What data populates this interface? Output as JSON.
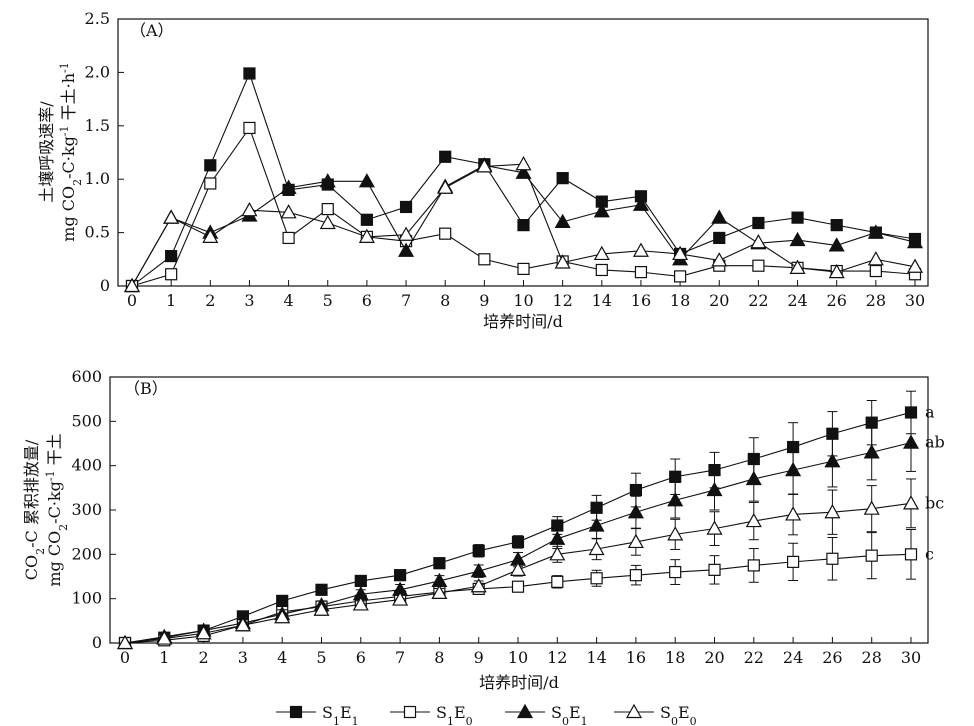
{
  "legend": [
    {
      "key": "S1E1",
      "base": "S",
      "sub1": "1",
      "mid": "E",
      "sub2": "1",
      "marker": "square",
      "fill": "#111111"
    },
    {
      "key": "S1E0",
      "base": "S",
      "sub1": "1",
      "mid": "E",
      "sub2": "0",
      "marker": "square",
      "fill": "#ffffff"
    },
    {
      "key": "S0E1",
      "base": "S",
      "sub1": "0",
      "mid": "E",
      "sub2": "1",
      "marker": "triangle",
      "fill": "#111111"
    },
    {
      "key": "S0E0",
      "base": "S",
      "sub1": "0",
      "mid": "E",
      "sub2": "0",
      "marker": "triangle",
      "fill": "#ffffff"
    }
  ],
  "chart_data": [
    {
      "type": "line",
      "panel_label": "（A）",
      "xlabel": "培养时间/d",
      "ylabel_line1": "土壤呼吸速率/",
      "ylabel_line2": {
        "a": "mg CO",
        "b": "2",
        "c": "-C·kg",
        "d": "-1",
        "e": " 干土·h",
        "f": "-1"
      },
      "categories": [
        "0",
        "1",
        "2",
        "3",
        "4",
        "5",
        "6",
        "7",
        "8",
        "9",
        "10",
        "12",
        "14",
        "16",
        "18",
        "20",
        "22",
        "24",
        "26",
        "28",
        "30"
      ],
      "ylim": [
        0,
        2.5
      ],
      "yticks": [
        "0",
        "0.5",
        "1.0",
        "1.5",
        "2.0",
        "2.5"
      ],
      "series": [
        {
          "key": "S1E1",
          "values": [
            0,
            0.28,
            1.13,
            1.99,
            0.9,
            0.95,
            0.62,
            0.74,
            1.21,
            1.14,
            0.57,
            1.01,
            0.79,
            0.84,
            0.3,
            0.45,
            0.59,
            0.64,
            0.57,
            0.5,
            0.44
          ]
        },
        {
          "key": "S1E0",
          "values": [
            0,
            0.11,
            0.96,
            1.48,
            0.45,
            0.72,
            0.46,
            0.42,
            0.49,
            0.25,
            0.16,
            0.23,
            0.15,
            0.13,
            0.09,
            0.19,
            0.19,
            0.17,
            0.14,
            0.14,
            0.11
          ]
        },
        {
          "key": "S0E1",
          "values": [
            0,
            0.64,
            0.5,
            0.66,
            0.92,
            0.98,
            0.98,
            0.33,
            0.93,
            1.13,
            1.06,
            0.6,
            0.7,
            0.76,
            0.25,
            0.64,
            0.4,
            0.43,
            0.38,
            0.5,
            0.41
          ]
        },
        {
          "key": "S0E0",
          "values": [
            0,
            0.64,
            0.46,
            0.71,
            0.69,
            0.59,
            0.46,
            0.48,
            0.92,
            1.12,
            1.14,
            0.22,
            0.3,
            0.33,
            0.3,
            0.24,
            0.41,
            0.17,
            0.13,
            0.25,
            0.18
          ]
        }
      ]
    },
    {
      "type": "line",
      "panel_label": "（B）",
      "xlabel": "培养时间/d",
      "ylabel_line1": {
        "a": "CO",
        "b": "2",
        "c": "-C 累积排放量/"
      },
      "ylabel_line2": {
        "a": "mg CO",
        "b": "2",
        "c": "-C·kg",
        "d": "-1",
        "e": " 干土"
      },
      "categories": [
        "0",
        "1",
        "2",
        "3",
        "4",
        "5",
        "6",
        "7",
        "8",
        "9",
        "10",
        "12",
        "14",
        "16",
        "18",
        "20",
        "22",
        "24",
        "26",
        "28",
        "30"
      ],
      "ylim": [
        0,
        600
      ],
      "yticks": [
        "0",
        "100",
        "200",
        "300",
        "400",
        "500",
        "600"
      ],
      "series": [
        {
          "key": "S1E1",
          "significance": "a",
          "values": [
            0,
            12,
            28,
            60,
            95,
            120,
            140,
            153,
            180,
            208,
            228,
            265,
            305,
            345,
            375,
            390,
            415,
            442,
            472,
            497,
            520
          ],
          "errors": [
            0,
            4,
            6,
            8,
            10,
            10,
            10,
            12,
            12,
            14,
            14,
            20,
            28,
            38,
            40,
            40,
            48,
            55,
            50,
            50,
            48
          ]
        },
        {
          "key": "S1E0",
          "significance": "c",
          "values": [
            0,
            6,
            16,
            40,
            70,
            82,
            95,
            105,
            115,
            122,
            127,
            138,
            146,
            153,
            160,
            165,
            175,
            183,
            190,
            197,
            200
          ],
          "errors": [
            0,
            3,
            5,
            6,
            8,
            8,
            8,
            10,
            10,
            10,
            10,
            14,
            18,
            22,
            28,
            32,
            38,
            42,
            48,
            52,
            56
          ]
        },
        {
          "key": "S0E1",
          "significance": "ab",
          "values": [
            0,
            14,
            28,
            45,
            65,
            85,
            110,
            120,
            140,
            162,
            188,
            235,
            265,
            295,
            322,
            345,
            370,
            390,
            410,
            430,
            452
          ],
          "errors": [
            0,
            4,
            6,
            8,
            10,
            10,
            10,
            12,
            12,
            14,
            16,
            22,
            30,
            36,
            40,
            45,
            50,
            55,
            58,
            62,
            65
          ]
        },
        {
          "key": "S0E0",
          "significance": "bc",
          "values": [
            0,
            10,
            22,
            40,
            58,
            75,
            87,
            98,
            113,
            128,
            165,
            200,
            212,
            228,
            245,
            258,
            275,
            290,
            295,
            303,
            315
          ],
          "errors": [
            0,
            3,
            5,
            6,
            8,
            8,
            8,
            10,
            10,
            12,
            14,
            18,
            24,
            30,
            34,
            38,
            42,
            46,
            50,
            52,
            55
          ]
        }
      ]
    }
  ]
}
